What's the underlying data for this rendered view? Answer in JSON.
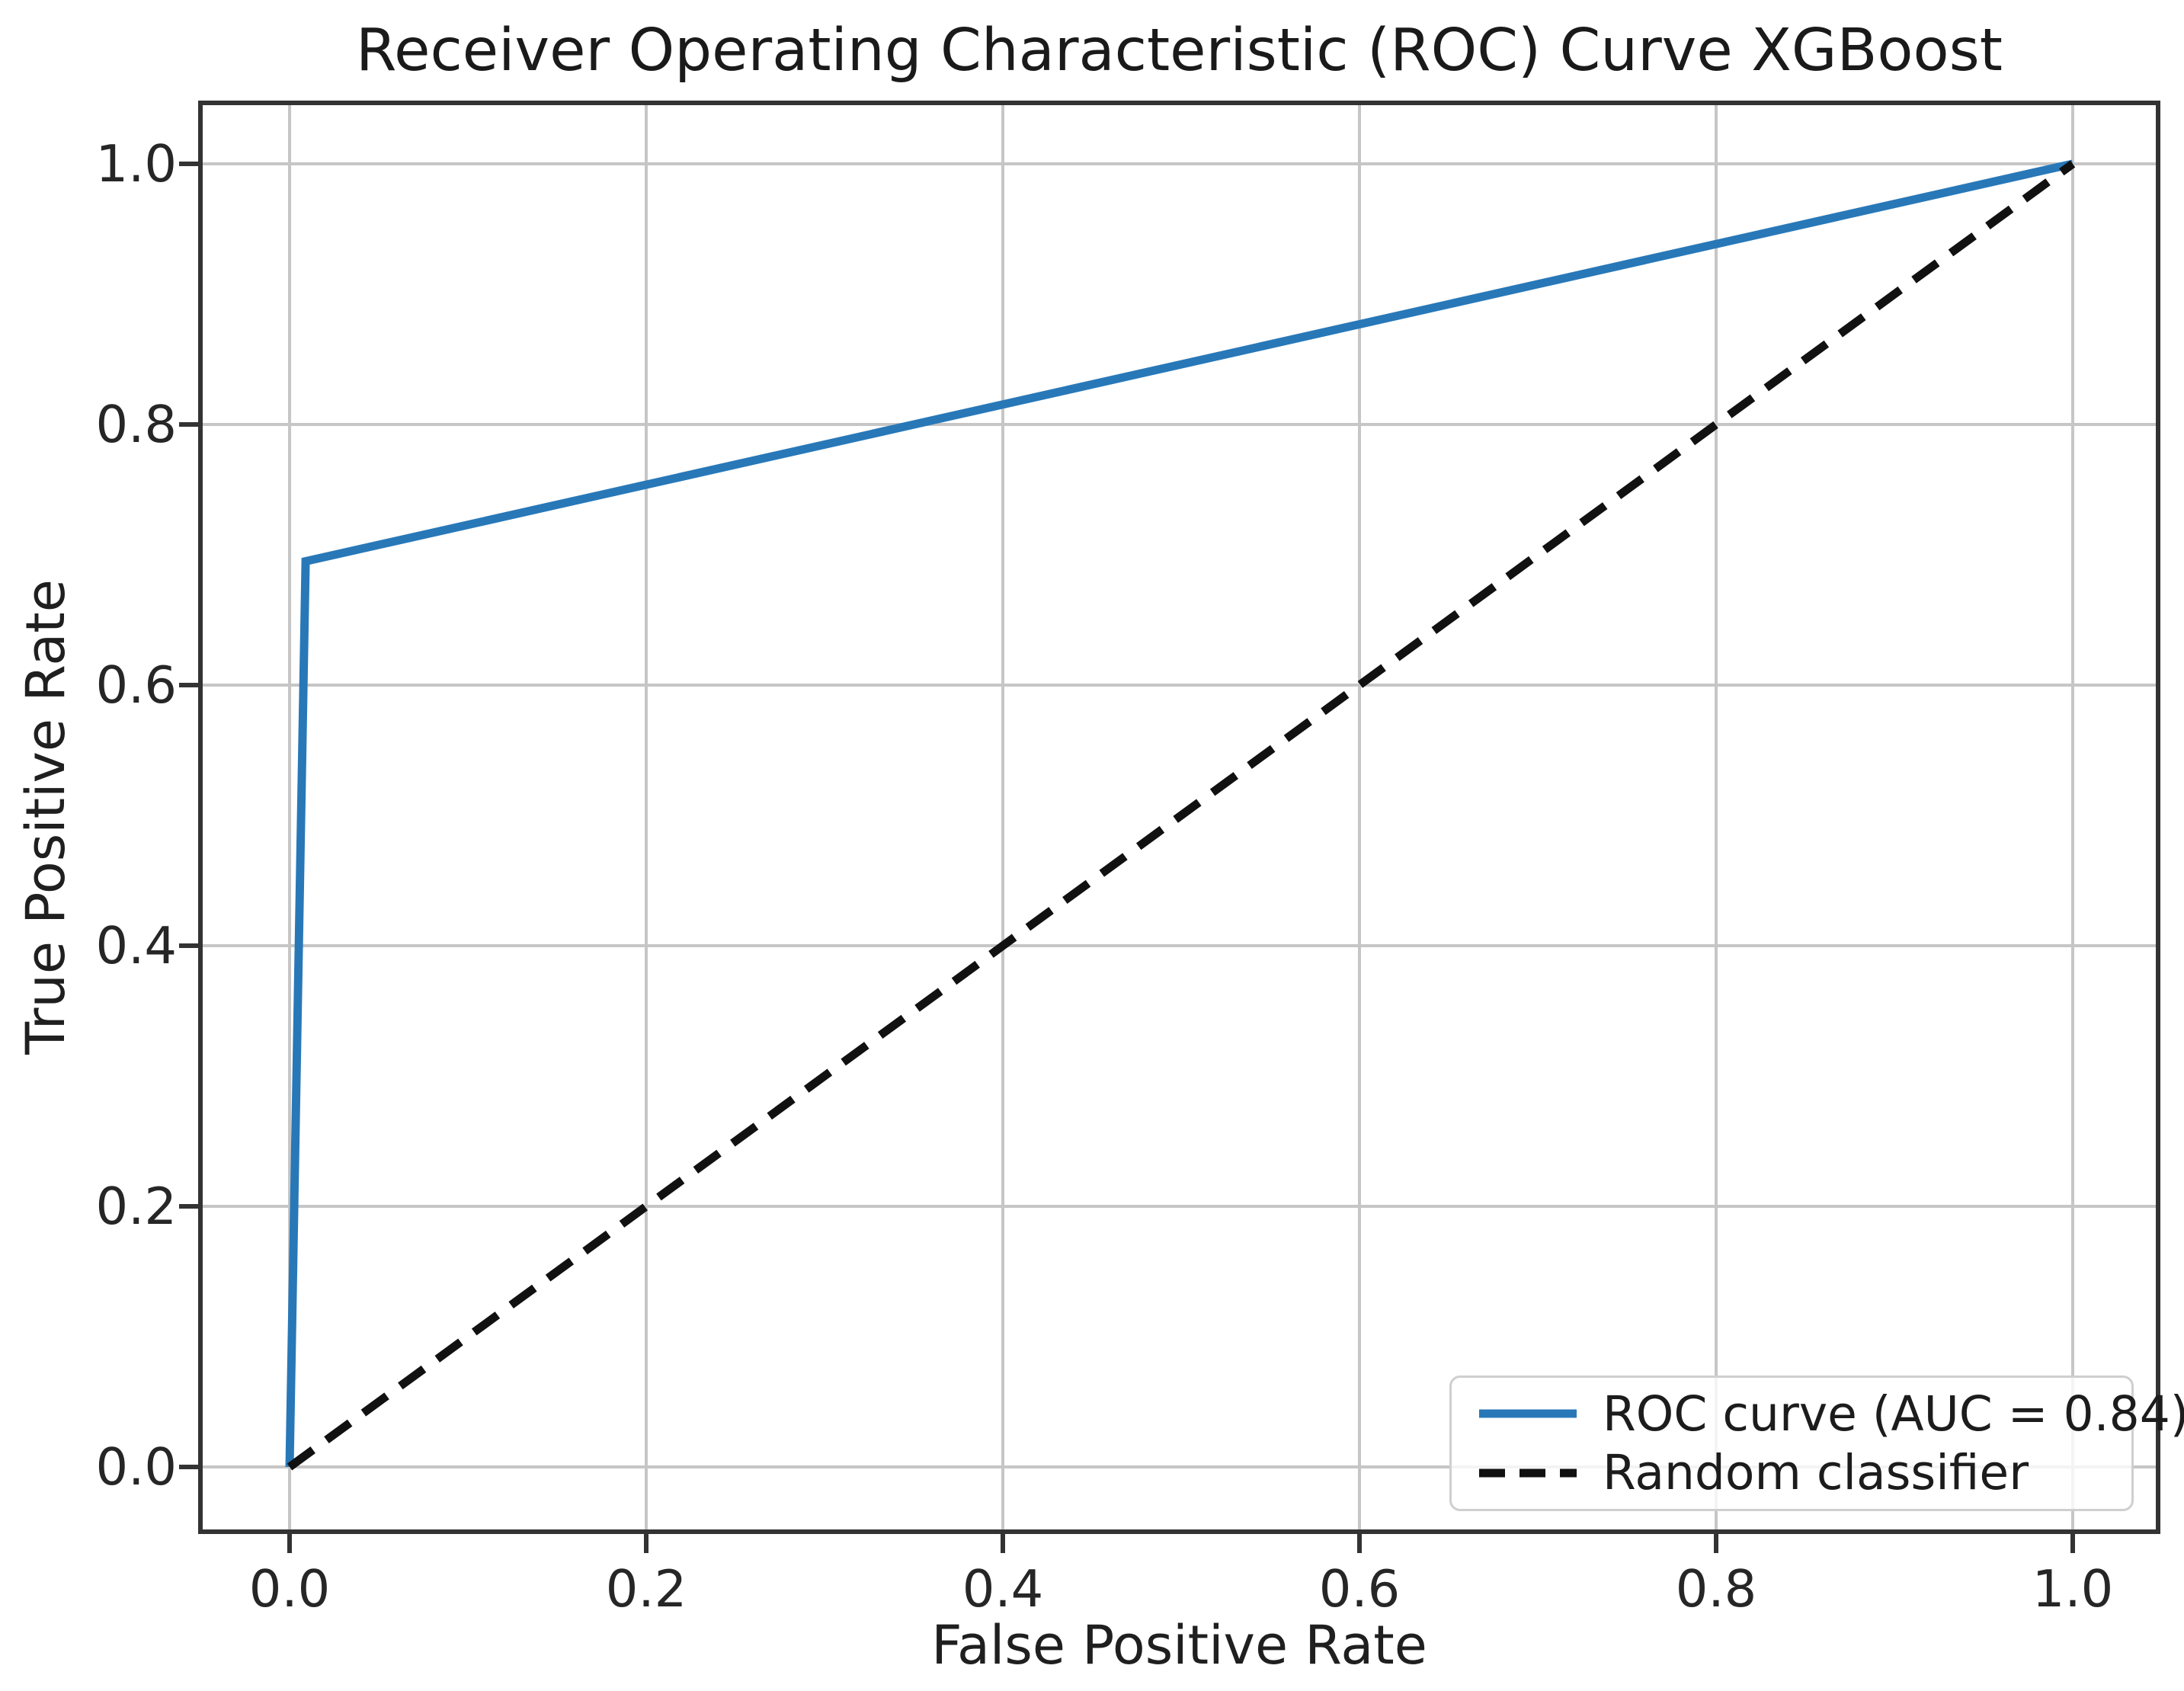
{
  "figure": {
    "title": "Receiver Operating Characteristic (ROC) Curve XGBoost",
    "xlabel": "False Positive Rate",
    "ylabel": "True Positive Rate"
  },
  "legend": {
    "position": "lower right",
    "items": [
      {
        "label": "ROC curve (AUC = 0.84)",
        "style": "solid",
        "color": "#2878b8"
      },
      {
        "label": "Random classifier",
        "style": "dashed",
        "color": "#111111"
      }
    ]
  },
  "chart_data": {
    "type": "line",
    "title": "Receiver Operating Characteristic (ROC) Curve XGBoost",
    "xlabel": "False Positive Rate",
    "ylabel": "True Positive Rate",
    "xlim": [
      -0.05,
      1.05
    ],
    "ylim": [
      -0.05,
      1.05
    ],
    "grid": true,
    "legend_position": "lower right",
    "auc": 0.84,
    "x_ticks": [
      0.0,
      0.2,
      0.4,
      0.6,
      0.8,
      1.0
    ],
    "x_tick_labels": [
      "0.0",
      "0.2",
      "0.4",
      "0.6",
      "0.8",
      "1.0"
    ],
    "y_ticks": [
      0.0,
      0.2,
      0.4,
      0.6,
      0.8,
      1.0
    ],
    "y_tick_labels": [
      "0.0",
      "0.2",
      "0.4",
      "0.6",
      "0.8",
      "1.0"
    ],
    "series": [
      {
        "id": "roc-curve",
        "name": "ROC curve (AUC = 0.84)",
        "color": "#2878b8",
        "dash": null,
        "points": [
          [
            0.0,
            0.0
          ],
          [
            0.009,
            0.695
          ],
          [
            1.0,
            1.0
          ]
        ]
      },
      {
        "id": "random-classifier",
        "name": "Random classifier",
        "color": "#111111",
        "dash": [
          38,
          22
        ],
        "points": [
          [
            0.0,
            0.0
          ],
          [
            1.0,
            1.0
          ]
        ]
      }
    ]
  },
  "colors": {
    "background": "#ffffff",
    "grid": "#c6c6c6",
    "spine": "#333333",
    "tick": "#333333",
    "text": "#1f1f1f",
    "roc_line": "#2878b8",
    "random_line": "#111111",
    "legend_border": "#cfcfcf"
  }
}
